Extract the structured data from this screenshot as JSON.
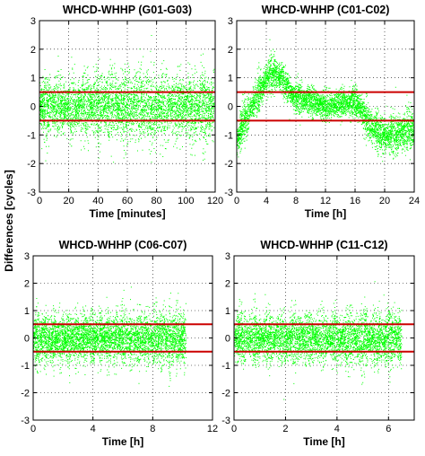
{
  "figure": {
    "ylabel": "Differences [cycles]"
  },
  "chart_data": [
    {
      "type": "scatter",
      "title": "WHCD-WHHP (G01-G03)",
      "xlabel": "Time [minutes]",
      "ylabel": "Differences [cycles]",
      "xlim": [
        0,
        120
      ],
      "ylim": [
        -3,
        3
      ],
      "xticks": [
        0,
        20,
        40,
        60,
        80,
        100,
        120
      ],
      "yticks": [
        -3,
        -2,
        -1,
        0,
        1,
        2,
        3
      ],
      "grid": "dotted",
      "marker_color": "#00ff00",
      "threshold_color": "#cc0000",
      "thresholds": [
        0.5,
        -0.5
      ],
      "data_x_range": [
        0,
        119
      ],
      "series": [
        {
          "values_description_free": true,
          "x": [
            0,
            10,
            20,
            30,
            40,
            50,
            60,
            70,
            80,
            90,
            100,
            110,
            119
          ],
          "center": [
            0,
            0,
            0,
            0,
            0,
            0,
            0,
            0,
            0,
            0,
            0,
            0,
            0
          ],
          "spread": [
            1.0,
            1.1,
            1.0,
            1.1,
            1.2,
            1.2,
            1.2,
            1.2,
            1.2,
            1.1,
            1.1,
            1.3,
            1.3
          ]
        }
      ]
    },
    {
      "type": "scatter",
      "title": "WHCD-WHHP (C01-C02)",
      "xlabel": "Time [h]",
      "ylabel": "",
      "xlim": [
        0,
        24
      ],
      "ylim": [
        -3,
        3
      ],
      "xticks": [
        0,
        4,
        8,
        12,
        16,
        20,
        24
      ],
      "yticks": [
        -3,
        -2,
        -1,
        0,
        1,
        2,
        3
      ],
      "grid": "dotted",
      "marker_color": "#00ff00",
      "threshold_color": "#cc0000",
      "thresholds": [
        0.5,
        -0.5
      ],
      "data_x_range": [
        0,
        24
      ],
      "series": [
        {
          "x": [
            0,
            1,
            2,
            3,
            4,
            5,
            6,
            7,
            8,
            10,
            12,
            14,
            16,
            17,
            18,
            19,
            20,
            22,
            24
          ],
          "center": [
            -1.2,
            -0.5,
            0.0,
            0.5,
            1.0,
            1.2,
            1.0,
            0.6,
            0.3,
            0.2,
            0.0,
            0.1,
            0.2,
            -0.2,
            -0.6,
            -0.9,
            -1.0,
            -0.9,
            -0.8
          ],
          "spread": [
            0.7,
            0.7,
            0.6,
            0.6,
            0.7,
            0.6,
            0.6,
            0.5,
            0.5,
            0.5,
            0.5,
            0.5,
            0.5,
            0.6,
            0.6,
            0.7,
            0.7,
            0.7,
            0.7
          ]
        }
      ]
    },
    {
      "type": "scatter",
      "title": "WHCD-WHHP (C06-C07)",
      "xlabel": "Time [h]",
      "ylabel": "",
      "xlim": [
        0,
        12
      ],
      "ylim": [
        -3,
        3
      ],
      "xticks": [
        0,
        4,
        8,
        12
      ],
      "yticks": [
        -3,
        -2,
        -1,
        0,
        1,
        2,
        3
      ],
      "grid": "dotted",
      "marker_color": "#00ff00",
      "threshold_color": "#cc0000",
      "thresholds": [
        0.5,
        -0.5
      ],
      "data_x_range": [
        0,
        10.2
      ],
      "series": [
        {
          "x": [
            0,
            1,
            2,
            3,
            4,
            5,
            6,
            7,
            8,
            9,
            10.2
          ],
          "center": [
            0,
            0,
            0,
            0,
            0,
            0,
            0,
            0,
            0,
            0,
            0
          ],
          "spread": [
            1.0,
            1.0,
            0.9,
            0.9,
            0.9,
            0.9,
            0.9,
            0.9,
            1.0,
            1.1,
            1.1
          ]
        }
      ]
    },
    {
      "type": "scatter",
      "title": "WHCD-WHHP (C11-C12)",
      "xlabel": "Time [h]",
      "ylabel": "",
      "xlim": [
        0,
        7
      ],
      "ylim": [
        -3,
        3
      ],
      "xticks": [
        0,
        2,
        4,
        6
      ],
      "yticks": [
        -3,
        -2,
        -1,
        0,
        1,
        2,
        3
      ],
      "grid": "dotted",
      "marker_color": "#00ff00",
      "threshold_color": "#cc0000",
      "thresholds": [
        0.5,
        -0.5
      ],
      "data_x_range": [
        0,
        6.5
      ],
      "series": [
        {
          "x": [
            0,
            1,
            2,
            3,
            4,
            5,
            6,
            6.5
          ],
          "center": [
            0,
            0,
            0,
            0,
            0,
            0,
            0,
            0
          ],
          "spread": [
            0.9,
            0.9,
            0.9,
            0.9,
            0.9,
            1.0,
            1.0,
            1.0
          ]
        }
      ]
    }
  ]
}
